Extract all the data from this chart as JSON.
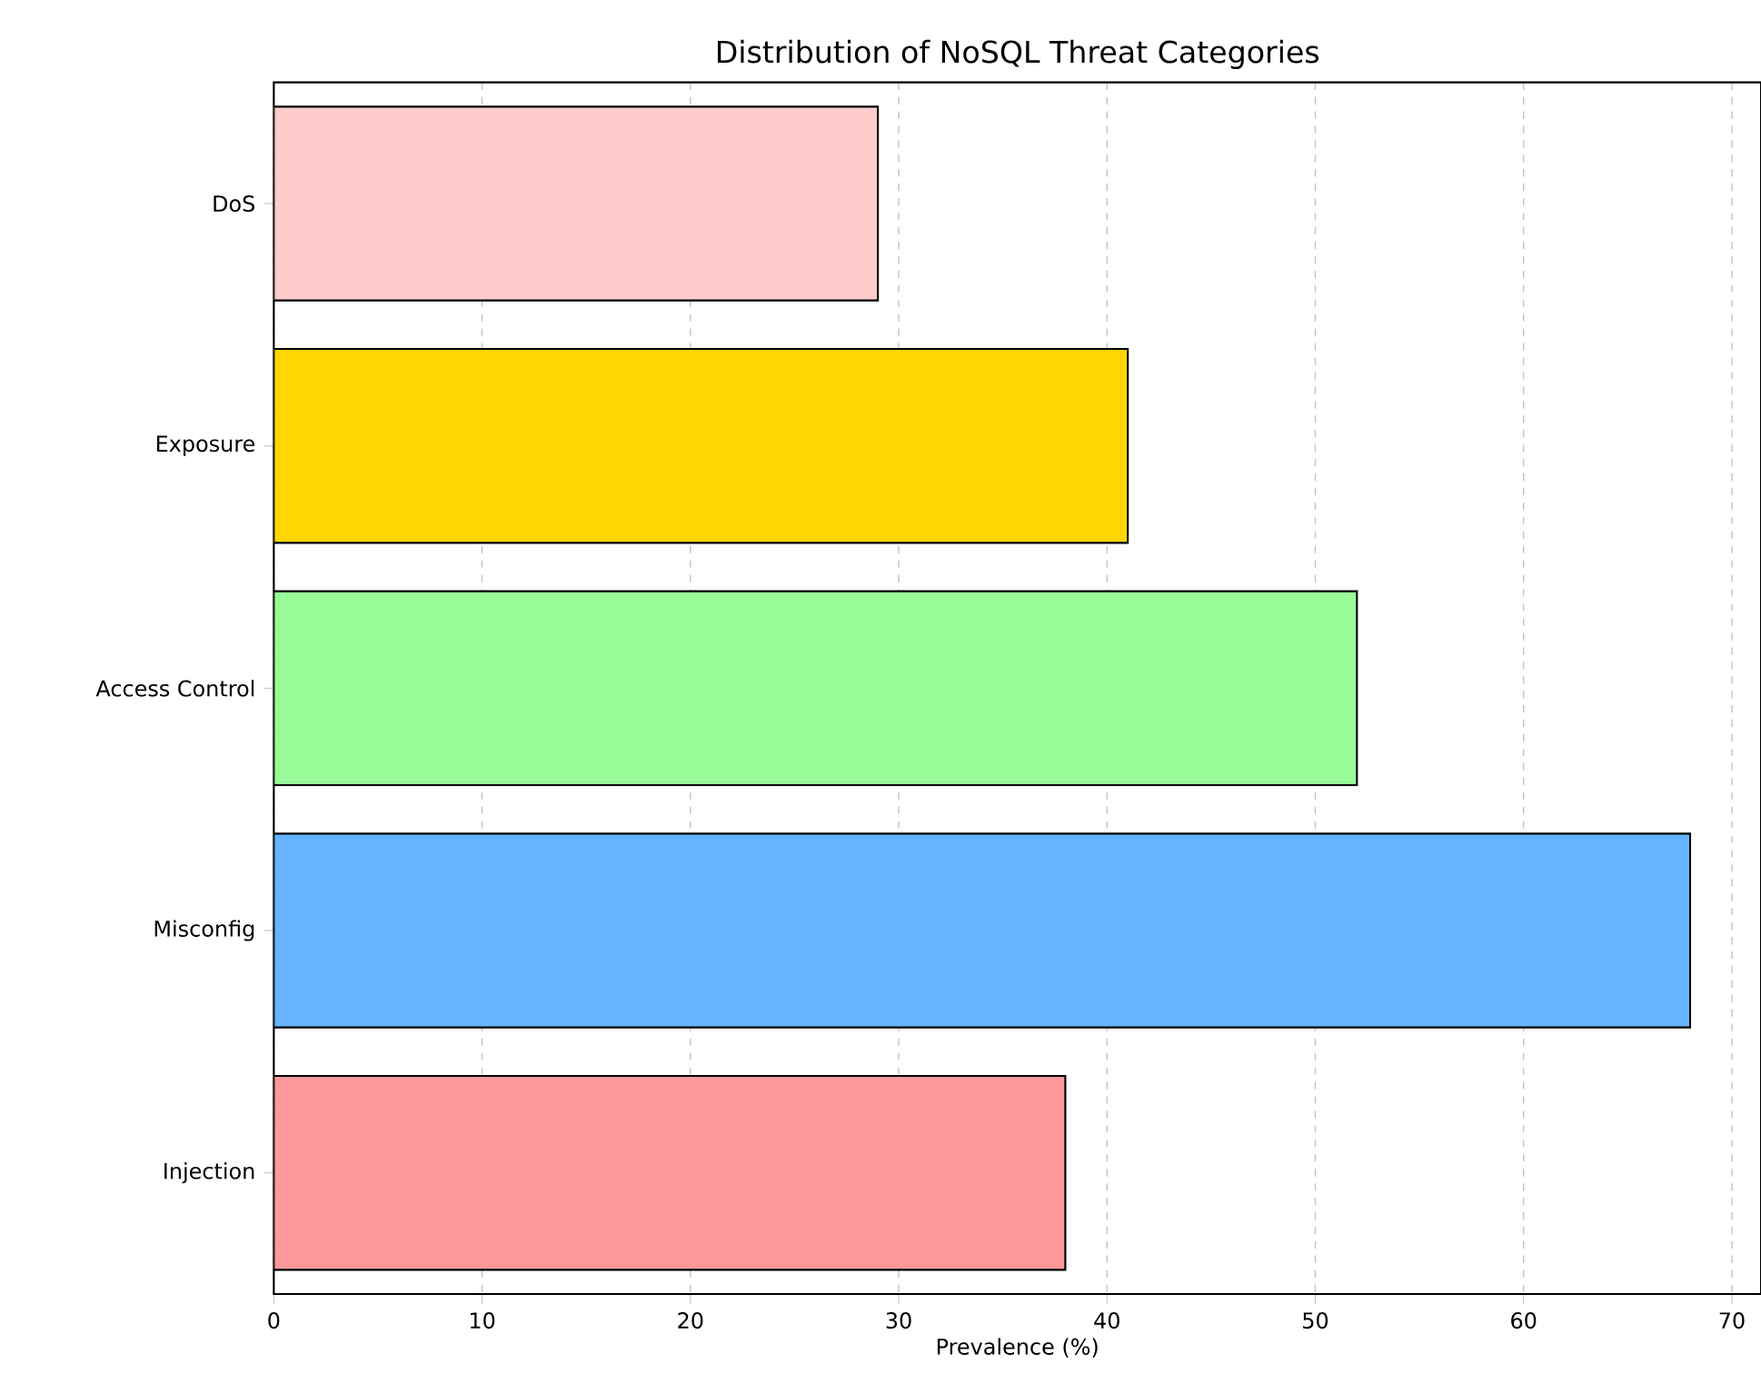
{
  "chart_data": {
    "type": "bar",
    "orientation": "horizontal",
    "title": "Distribution of NoSQL Threat Categories",
    "xlabel": "Prevalence (%)",
    "categories": [
      "DoS",
      "Exposure",
      "Access Control",
      "Misconfig",
      "Injection"
    ],
    "values": [
      29,
      41,
      52,
      68,
      38
    ],
    "colors": [
      "#ffcccb",
      "#ffd700",
      "#98fb98",
      "#66b3ff",
      "#ff9999"
    ],
    "xlim": [
      0,
      71.4
    ],
    "xticks": [
      0,
      10,
      20,
      30,
      40,
      50,
      60,
      70
    ],
    "grid": "x"
  }
}
